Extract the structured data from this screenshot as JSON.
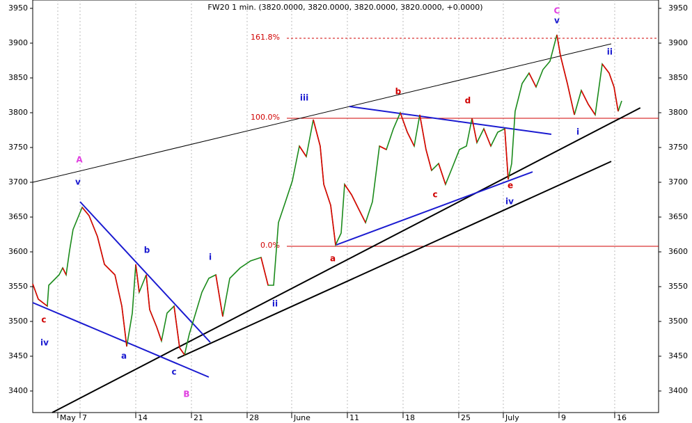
{
  "chart_data": {
    "type": "line",
    "title": "FW20 1 min. (3820.0000, 3820.0000, 3820.0000, 3820.0000, +0.0000)",
    "xlim": [
      -4.25,
      51.94
    ],
    "ylim": [
      3369,
      3962
    ],
    "yticks": [
      3400,
      3450,
      3500,
      3550,
      3600,
      3650,
      3700,
      3750,
      3800,
      3850,
      3900,
      3950
    ],
    "xticks": [
      {
        "value": -2,
        "label": "May"
      },
      {
        "value": 0,
        "label": "7"
      },
      {
        "value": 5,
        "label": "14"
      },
      {
        "value": 10,
        "label": "21"
      },
      {
        "value": 15,
        "label": "28"
      },
      {
        "value": 19,
        "label": "June"
      },
      {
        "value": 24,
        "label": "11"
      },
      {
        "value": 29,
        "label": "18"
      },
      {
        "value": 34,
        "label": "25"
      },
      {
        "value": 38,
        "label": "July"
      },
      {
        "value": 43,
        "label": "9"
      },
      {
        "value": 48,
        "label": "16"
      }
    ],
    "grid": true,
    "series": [
      {
        "color": "#1a8a1a",
        "down_color": "#e00000",
        "x": [
          -4.25,
          -3.75,
          -2.94,
          -2.81,
          -1.88,
          -1.56,
          -1.25,
          -0.94,
          -0.63,
          0.19,
          0.81,
          1.56,
          2.19,
          3.13,
          3.75,
          4.19,
          4.69,
          5,
          5.31,
          5.94,
          6.25,
          6.88,
          7.31,
          7.81,
          8.44,
          8.94,
          9.38,
          9.81,
          10.19,
          10.94,
          11.56,
          12.19,
          12.81,
          13.44,
          14.38,
          15.31,
          16.25,
          16.88,
          17.38,
          17.81,
          18.44,
          19.06,
          19.69,
          20.31,
          20.94,
          21.56,
          21.88,
          22.5,
          22.94,
          23.44,
          23.75,
          24.38,
          25,
          25.63,
          26.25,
          26.88,
          27.5,
          28.13,
          28.75,
          29.38,
          30,
          30.5,
          31.06,
          31.56,
          32.19,
          32.81,
          33.44,
          34.06,
          34.69,
          35.19,
          35.63,
          36.25,
          36.88,
          37.5,
          38.13,
          38.44,
          38.75,
          39.06,
          39.69,
          40.31,
          40.94,
          41.56,
          42.19,
          42.81,
          43.13,
          43.75,
          44.38,
          45,
          45.63,
          46.25,
          46.88,
          47.5,
          47.94,
          48.31,
          48.63
        ],
        "values": [
          3554,
          3532,
          3522,
          3552,
          3567,
          3577,
          3567,
          3602,
          3632,
          3664,
          3652,
          3622,
          3582,
          3567,
          3522,
          3464,
          3512,
          3582,
          3542,
          3567,
          3517,
          3492,
          3472,
          3512,
          3522,
          3462,
          3452,
          3482,
          3502,
          3542,
          3562,
          3567,
          3507,
          3562,
          3577,
          3587,
          3592,
          3552,
          3552,
          3642,
          3672,
          3702,
          3752,
          3737,
          3790,
          3752,
          3697,
          3667,
          3610,
          3627,
          3697,
          3682,
          3662,
          3642,
          3672,
          3752,
          3747,
          3777,
          3800,
          3772,
          3752,
          3797,
          3747,
          3717,
          3727,
          3697,
          3722,
          3747,
          3752,
          3792,
          3757,
          3777,
          3752,
          3772,
          3777,
          3704,
          3727,
          3802,
          3842,
          3857,
          3837,
          3862,
          3874,
          3912,
          3882,
          3842,
          3797,
          3832,
          3812,
          3797,
          3870,
          3857,
          3837,
          3802,
          3817
        ]
      }
    ],
    "fib_levels": [
      {
        "label": "161.8%",
        "value": 3907,
        "dashed": true
      },
      {
        "label": "100.0%",
        "value": 3792,
        "dashed": false
      },
      {
        "label": "0.0%",
        "value": 3608,
        "dashed": false
      }
    ],
    "fib_color": "#d00000",
    "trendlines": [
      {
        "x": [
          -4.25,
          47.69
        ],
        "y": [
          3700,
          3899
        ],
        "color": "#000000",
        "width": 1
      },
      {
        "x": [
          -2.5,
          50.3
        ],
        "y": [
          3369,
          3807
        ],
        "color": "#000000",
        "width": 2
      },
      {
        "x": [
          8.75,
          47.69
        ],
        "y": [
          3447,
          3730
        ],
        "color": "#000000",
        "width": 2
      },
      {
        "x": [
          0,
          11.69
        ],
        "y": [
          3672,
          3470
        ],
        "color": "#1a1ad0",
        "width": 2
      },
      {
        "x": [
          -4.25,
          11.56
        ],
        "y": [
          3527,
          3420
        ],
        "color": "#1a1ad0",
        "width": 2
      },
      {
        "x": [
          24.19,
          42.31
        ],
        "y": [
          3809,
          3769
        ],
        "color": "#1a1ad0",
        "width": 2
      },
      {
        "x": [
          23,
          40.63
        ],
        "y": [
          3610,
          3715
        ],
        "color": "#1a1ad0",
        "width": 2
      }
    ],
    "annotations": [
      {
        "text": "A",
        "x": -0.06,
        "y": 3732,
        "color": "#e040e0"
      },
      {
        "text": "v",
        "x": -0.19,
        "y": 3700,
        "color": "#1a1ad0"
      },
      {
        "text": "c",
        "x": -3.25,
        "y": 3502,
        "color": "#d00000"
      },
      {
        "text": "iv",
        "x": -3.19,
        "y": 3469,
        "color": "#1a1ad0"
      },
      {
        "text": "b",
        "x": 6,
        "y": 3602,
        "color": "#1a1ad0"
      },
      {
        "text": "a",
        "x": 3.94,
        "y": 3450,
        "color": "#1a1ad0"
      },
      {
        "text": "c",
        "x": 8.44,
        "y": 3427,
        "color": "#1a1ad0"
      },
      {
        "text": "B",
        "x": 9.56,
        "y": 3395,
        "color": "#e040e0"
      },
      {
        "text": "i",
        "x": 11.69,
        "y": 3592,
        "color": "#1a1ad0"
      },
      {
        "text": "ii",
        "x": 17.5,
        "y": 3525,
        "color": "#1a1ad0"
      },
      {
        "text": "iii",
        "x": 20.13,
        "y": 3821,
        "color": "#1a1ad0"
      },
      {
        "text": "a",
        "x": 22.69,
        "y": 3590,
        "color": "#d00000"
      },
      {
        "text": "b",
        "x": 28.56,
        "y": 3830,
        "color": "#d00000"
      },
      {
        "text": "c",
        "x": 31.88,
        "y": 3682,
        "color": "#d00000"
      },
      {
        "text": "d",
        "x": 34.81,
        "y": 3817,
        "color": "#d00000"
      },
      {
        "text": "e",
        "x": 38.63,
        "y": 3695,
        "color": "#d00000"
      },
      {
        "text": "iv",
        "x": 38.56,
        "y": 3672,
        "color": "#1a1ad0"
      },
      {
        "text": "C",
        "x": 42.81,
        "y": 3946,
        "color": "#e040e0"
      },
      {
        "text": "v",
        "x": 42.81,
        "y": 3932,
        "color": "#1a1ad0"
      },
      {
        "text": "ii",
        "x": 47.56,
        "y": 3887,
        "color": "#1a1ad0"
      },
      {
        "text": "i",
        "x": 44.69,
        "y": 3772,
        "color": "#1a1ad0"
      }
    ]
  }
}
